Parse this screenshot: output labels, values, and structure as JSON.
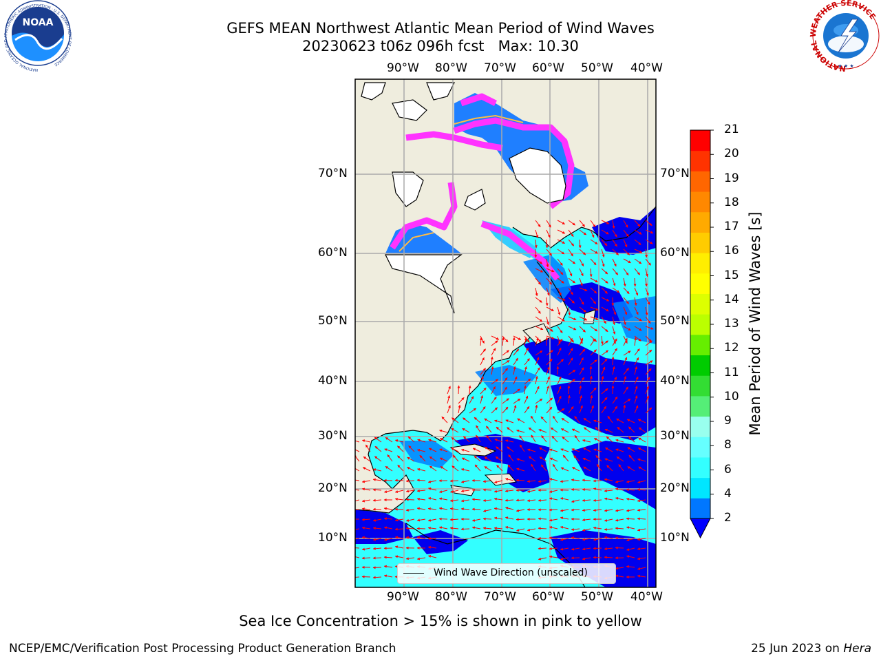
{
  "title": {
    "line1": "GEFS MEAN Northwest Atlantic Mean Period of Wind Waves",
    "line2": "20230623 t06z 096h fcst   Max: 10.30"
  },
  "logos": {
    "noaa_text": "NOAA",
    "noaa_ring_text": "NATIONAL OCEANIC AND ATMOSPHERIC ADMINISTRATION · U.S. DEPARTMENT OF COMMERCE",
    "nws_ring_text": "NATIONAL WEATHER SERVICE"
  },
  "map": {
    "lon_ticks": [
      "90°W",
      "80°W",
      "70°W",
      "60°W",
      "50°W",
      "40°W"
    ],
    "lat_ticks": [
      "70°N",
      "60°N",
      "50°N",
      "40°N",
      "30°N",
      "20°N",
      "10°N"
    ],
    "legend_label": "Wind Wave Direction (unscaled)",
    "colors": {
      "land": "#efedde",
      "ocean": "#33ffff",
      "low": "#0000ff",
      "ice": "#ff33ff",
      "arrow": "#ff0000"
    }
  },
  "colorbar": {
    "label": "Mean Period of Wind Waves [s]",
    "ticks": [
      "2",
      "4",
      "6",
      "8",
      "9",
      "10",
      "11",
      "12",
      "13",
      "14",
      "15",
      "16",
      "17",
      "18",
      "19",
      "20",
      "21"
    ],
    "level_colors": [
      "#0077ff",
      "#00e6ff",
      "#33ffff",
      "#66ffff",
      "#99ffee",
      "#55ee77",
      "#33dd33",
      "#00cc00",
      "#66ee00",
      "#bbff00",
      "#ddff00",
      "#ffff00",
      "#ffee00",
      "#ffcc00",
      "#ffaa00",
      "#ff8800",
      "#ff6600",
      "#ff3300",
      "#ff0000"
    ],
    "under_color": "#0000ff"
  },
  "footer": {
    "note": "Sea Ice Concentration > 15% is shown in pink to yellow",
    "credit_left": "NCEP/EMC/Verification Post Processing Product Generation Branch",
    "date": "25 Jun 2023 on ",
    "host": "Hera"
  }
}
